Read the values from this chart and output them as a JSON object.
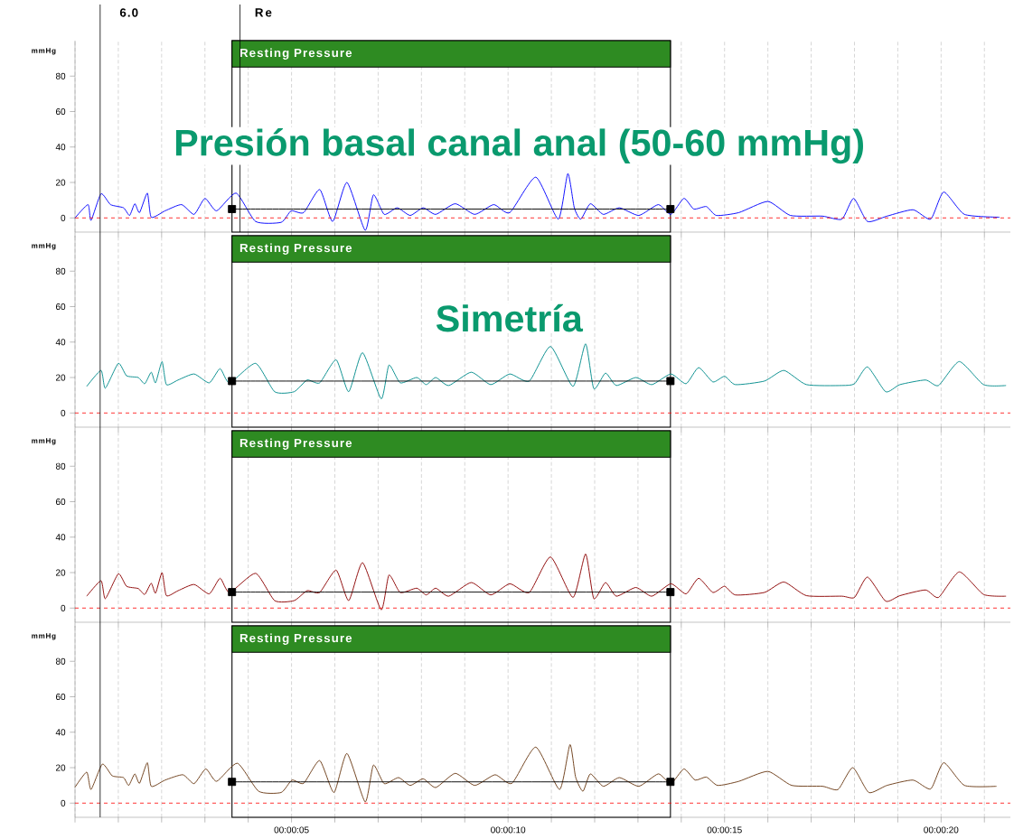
{
  "chart_data": [
    {
      "type": "line",
      "ylabel": "mmHg",
      "xlim": [
        0,
        21.6
      ],
      "ylim": [
        -8,
        100
      ],
      "yticks": [
        0,
        20,
        40,
        60,
        80
      ],
      "xticks": [
        0,
        1,
        2,
        3,
        4,
        5,
        6,
        7,
        8,
        9,
        10,
        11,
        12,
        13,
        14,
        15,
        16,
        17,
        18,
        19,
        20,
        21
      ],
      "tick_labels": "y",
      "grid": "x",
      "series": [
        {
          "color": "#0000ff",
          "x": [
            0,
            0.3,
            0.37,
            0.6,
            0.82,
            1.12,
            1.26,
            1.38,
            1.49,
            1.67,
            1.76,
            2.08,
            2.46,
            2.75,
            3.0,
            3.27,
            3.72,
            4.17,
            4.76,
            4.99,
            5.28,
            5.65,
            5.95,
            6.28,
            6.7,
            6.89,
            7.14,
            7.44,
            7.74,
            8.04,
            8.33,
            8.78,
            9.23,
            9.67,
            10.04,
            10.64,
            11.16,
            11.38,
            11.53,
            11.68,
            11.9,
            12.2,
            12.57,
            13.02,
            13.47,
            13.76,
            14.06,
            14.29,
            14.58,
            14.81,
            15.33,
            16.0,
            16.52,
            17.26,
            17.71,
            17.98,
            18.3,
            18.75,
            19.35,
            19.76,
            20.06,
            20.54,
            21.35
          ],
          "values": [
            0,
            7.5,
            -1.4,
            13.6,
            7.5,
            5.7,
            1.4,
            8,
            3,
            14,
            0.4,
            4,
            7.5,
            2,
            11,
            4,
            14,
            -2,
            -2.5,
            4,
            3,
            16,
            -2,
            20,
            -7,
            13,
            2,
            5.7,
            1.4,
            5.7,
            2,
            8,
            2,
            7.5,
            3,
            23,
            -0.7,
            25,
            5.7,
            -0.7,
            8,
            2,
            5.7,
            1.4,
            7.5,
            2,
            11,
            5,
            6.4,
            1.4,
            3,
            9.3,
            1.4,
            1,
            -0.7,
            11,
            -2,
            1,
            4.6,
            -0.7,
            14.6,
            2,
            0.4
          ]
        },
        {
          "color": "#000000",
          "marker": "square",
          "x": [
            3.625,
            13.75
          ],
          "values": [
            5,
            5
          ]
        }
      ],
      "bands": [
        {
          "axis": "x",
          "from": 3.625,
          "to": 13.75,
          "label": "Resting Pressure",
          "color": "#2e8b22"
        }
      ],
      "ref_lines": [
        {
          "axis": "y",
          "value": 0,
          "color": "#ff0000",
          "line_style": "dashed"
        },
        {
          "axis": "x",
          "value": 0.58,
          "color": "#000000"
        },
        {
          "axis": "x",
          "value": 3.81,
          "label": "Re",
          "color": "#000000"
        }
      ],
      "annotations": [
        "Presión basal  canal anal (50-60 mmHg)",
        {
          "text": "6.0",
          "x": 0.58
        }
      ]
    },
    {
      "type": "line",
      "ylabel": "mmHg",
      "xlim": [
        0,
        21.6
      ],
      "ylim": [
        -8,
        100
      ],
      "yticks": [
        0,
        20,
        40,
        60,
        80
      ],
      "xticks": [
        0,
        1,
        2,
        3,
        4,
        5,
        6,
        7,
        8,
        9,
        10,
        11,
        12,
        13,
        14,
        15,
        16,
        17,
        18,
        19,
        20,
        21
      ],
      "tick_labels": "y",
      "grid": "x",
      "series": [
        {
          "color": "#008b8b",
          "x": [
            0.27,
            0.6,
            0.7,
            1.0,
            1.19,
            1.46,
            1.61,
            1.76,
            1.86,
            2.01,
            2.11,
            2.38,
            2.75,
            3.1,
            3.35,
            3.57,
            4.17,
            4.61,
            5.06,
            5.36,
            5.65,
            6.03,
            6.32,
            6.64,
            7.07,
            7.25,
            7.51,
            7.89,
            8.11,
            8.33,
            8.63,
            9.15,
            9.6,
            10.04,
            10.49,
            10.98,
            11.5,
            11.79,
            11.98,
            12.25,
            12.5,
            12.95,
            13.32,
            13.76,
            14.11,
            14.4,
            14.73,
            15.0,
            15.25,
            15.92,
            16.37,
            16.89,
            17.71,
            18.0,
            18.3,
            18.72,
            19.05,
            19.64,
            19.94,
            20.42,
            20.98,
            21.5
          ],
          "values": [
            15,
            24,
            14,
            28,
            21,
            20,
            16.5,
            23,
            17,
            29,
            16,
            18.6,
            22,
            17,
            25,
            17,
            28,
            12,
            12,
            18.6,
            17,
            30,
            12,
            34,
            8,
            27,
            17,
            20,
            16,
            20,
            15.5,
            23,
            16,
            22,
            18,
            37.5,
            15,
            39,
            13.7,
            22.5,
            15.5,
            20,
            16,
            22,
            16.5,
            25.6,
            17.5,
            20.7,
            16,
            18,
            24,
            16,
            15.5,
            16.5,
            26,
            12,
            16,
            18.6,
            15.5,
            29,
            16,
            15.5
          ]
        },
        {
          "color": "#000000",
          "marker": "square",
          "x": [
            3.625,
            13.75
          ],
          "values": [
            18,
            18
          ]
        }
      ],
      "bands": [
        {
          "axis": "x",
          "from": 3.625,
          "to": 13.75,
          "label": "Resting Pressure",
          "color": "#2e8b22"
        }
      ],
      "ref_lines": [
        {
          "axis": "y",
          "value": 0,
          "color": "#ff0000",
          "line_style": "dashed"
        },
        {
          "axis": "x",
          "value": 0.58,
          "color": "#000000"
        }
      ],
      "annotations": [
        "Simetría"
      ]
    },
    {
      "type": "line",
      "ylabel": "mmHg",
      "xlim": [
        0,
        21.6
      ],
      "ylim": [
        -8,
        100
      ],
      "yticks": [
        0,
        20,
        40,
        60,
        80
      ],
      "xticks": [
        0,
        1,
        2,
        3,
        4,
        5,
        6,
        7,
        8,
        9,
        10,
        11,
        12,
        13,
        14,
        15,
        16,
        17,
        18,
        19,
        20,
        21
      ],
      "tick_labels": "y",
      "grid": "x",
      "series": [
        {
          "color": "#8b0000",
          "x": [
            0.27,
            0.6,
            0.7,
            1.0,
            1.19,
            1.46,
            1.61,
            1.76,
            1.86,
            2.01,
            2.11,
            2.38,
            2.75,
            3.1,
            3.35,
            3.57,
            4.17,
            4.61,
            5.06,
            5.36,
            5.65,
            6.03,
            6.32,
            6.64,
            7.07,
            7.25,
            7.51,
            7.89,
            8.11,
            8.33,
            8.63,
            9.15,
            9.6,
            10.04,
            10.49,
            10.98,
            11.5,
            11.79,
            11.98,
            12.25,
            12.5,
            12.95,
            13.32,
            13.76,
            14.11,
            14.4,
            14.73,
            15.0,
            15.25,
            15.92,
            16.37,
            16.89,
            17.71,
            18.0,
            18.3,
            18.72,
            19.05,
            19.64,
            19.94,
            20.42,
            20.98,
            21.5
          ],
          "values": [
            6.7,
            15.4,
            5.3,
            19.3,
            12.3,
            11,
            7.7,
            14,
            8.4,
            20,
            7,
            9.8,
            13.3,
            8,
            16.8,
            8.8,
            19.6,
            4.2,
            4.2,
            9.8,
            8.8,
            21.4,
            4.2,
            25.6,
            -1,
            18.6,
            8.8,
            11.2,
            7.4,
            11.2,
            6.7,
            14.4,
            7.4,
            13.7,
            8.8,
            28.8,
            6,
            30.5,
            5.3,
            14.4,
            6.7,
            11.6,
            6.7,
            13.7,
            8,
            16.8,
            8.8,
            12.3,
            7.4,
            8.8,
            14.7,
            7,
            6.7,
            6,
            17.5,
            3.9,
            7,
            10.2,
            6,
            20.4,
            7.7,
            6.7
          ]
        },
        {
          "color": "#000000",
          "marker": "square",
          "x": [
            3.625,
            13.75
          ],
          "values": [
            9,
            9
          ]
        }
      ],
      "bands": [
        {
          "axis": "x",
          "from": 3.625,
          "to": 13.75,
          "label": "Resting Pressure",
          "color": "#2e8b22"
        }
      ],
      "ref_lines": [
        {
          "axis": "y",
          "value": 0,
          "color": "#ff0000",
          "line_style": "dashed"
        },
        {
          "axis": "x",
          "value": 0.58,
          "color": "#000000"
        }
      ]
    },
    {
      "type": "line",
      "ylabel": "mmHg",
      "xlim": [
        0,
        21.6
      ],
      "ylim": [
        -8,
        100
      ],
      "yticks": [
        0,
        20,
        40,
        60,
        80
      ],
      "grid": "x",
      "xticks": [
        {
          "value": 0,
          "label": null
        },
        {
          "value": 1,
          "label": null
        },
        {
          "value": 2,
          "label": null
        },
        {
          "value": 3,
          "label": null
        },
        {
          "value": 4,
          "label": null
        },
        {
          "value": 5,
          "label": "00:00:05"
        },
        {
          "value": 6,
          "label": null
        },
        {
          "value": 7,
          "label": null
        },
        {
          "value": 8,
          "label": null
        },
        {
          "value": 9,
          "label": null
        },
        {
          "value": 10,
          "label": "00:00:10"
        },
        {
          "value": 11,
          "label": null
        },
        {
          "value": 12,
          "label": null
        },
        {
          "value": 13,
          "label": null
        },
        {
          "value": 14,
          "label": null
        },
        {
          "value": 15,
          "label": "00:00:15"
        },
        {
          "value": 16,
          "label": null
        },
        {
          "value": 17,
          "label": null
        },
        {
          "value": 18,
          "label": null
        },
        {
          "value": 19,
          "label": null
        },
        {
          "value": 20,
          "label": "00:00:20"
        },
        {
          "value": 21,
          "label": null
        }
      ],
      "series": [
        {
          "color": "#6b3a14",
          "x": [
            0,
            0.27,
            0.37,
            0.63,
            0.86,
            1.12,
            1.24,
            1.38,
            1.49,
            1.67,
            1.76,
            2.08,
            2.49,
            2.75,
            3.02,
            3.27,
            3.75,
            4.24,
            4.76,
            5.01,
            5.28,
            5.65,
            5.98,
            6.28,
            6.7,
            6.89,
            7.14,
            7.47,
            7.74,
            8.04,
            8.33,
            8.78,
            9.23,
            9.7,
            10.09,
            10.64,
            11.19,
            11.43,
            11.56,
            11.73,
            11.9,
            12.2,
            12.57,
            13.02,
            13.47,
            13.76,
            14.06,
            14.32,
            14.58,
            14.84,
            15.33,
            16.0,
            16.55,
            17.26,
            17.62,
            17.96,
            18.33,
            18.75,
            19.35,
            19.76,
            20.06,
            20.54,
            21.28
          ],
          "values": [
            9,
            17.5,
            7.7,
            22,
            15.4,
            14.4,
            10,
            16.5,
            11.2,
            22.8,
            9.5,
            13,
            16,
            11,
            19.3,
            12.3,
            22.5,
            6.7,
            6,
            13,
            11.2,
            24,
            6,
            28,
            0.7,
            21.4,
            11,
            14.4,
            10,
            13.7,
            8.8,
            16.8,
            10,
            16,
            11.2,
            31.6,
            7.7,
            33,
            14.7,
            6.7,
            16.5,
            9.5,
            14.4,
            9.5,
            16.5,
            11,
            19.3,
            13,
            14.7,
            10,
            12.3,
            17.9,
            10,
            9.5,
            7.7,
            20,
            6,
            10,
            13,
            8,
            22.8,
            10,
            9.5
          ]
        },
        {
          "color": "#000000",
          "marker": "square",
          "x": [
            3.625,
            13.75
          ],
          "values": [
            12,
            12
          ]
        }
      ],
      "bands": [
        {
          "axis": "x",
          "from": 3.625,
          "to": 13.75,
          "label": "Resting Pressure",
          "color": "#2e8b22"
        }
      ],
      "ref_lines": [
        {
          "axis": "y",
          "value": 0,
          "color": "#ff0000",
          "line_style": "dashed"
        },
        {
          "axis": "x",
          "value": 0.58,
          "color": "#000000"
        }
      ]
    }
  ]
}
